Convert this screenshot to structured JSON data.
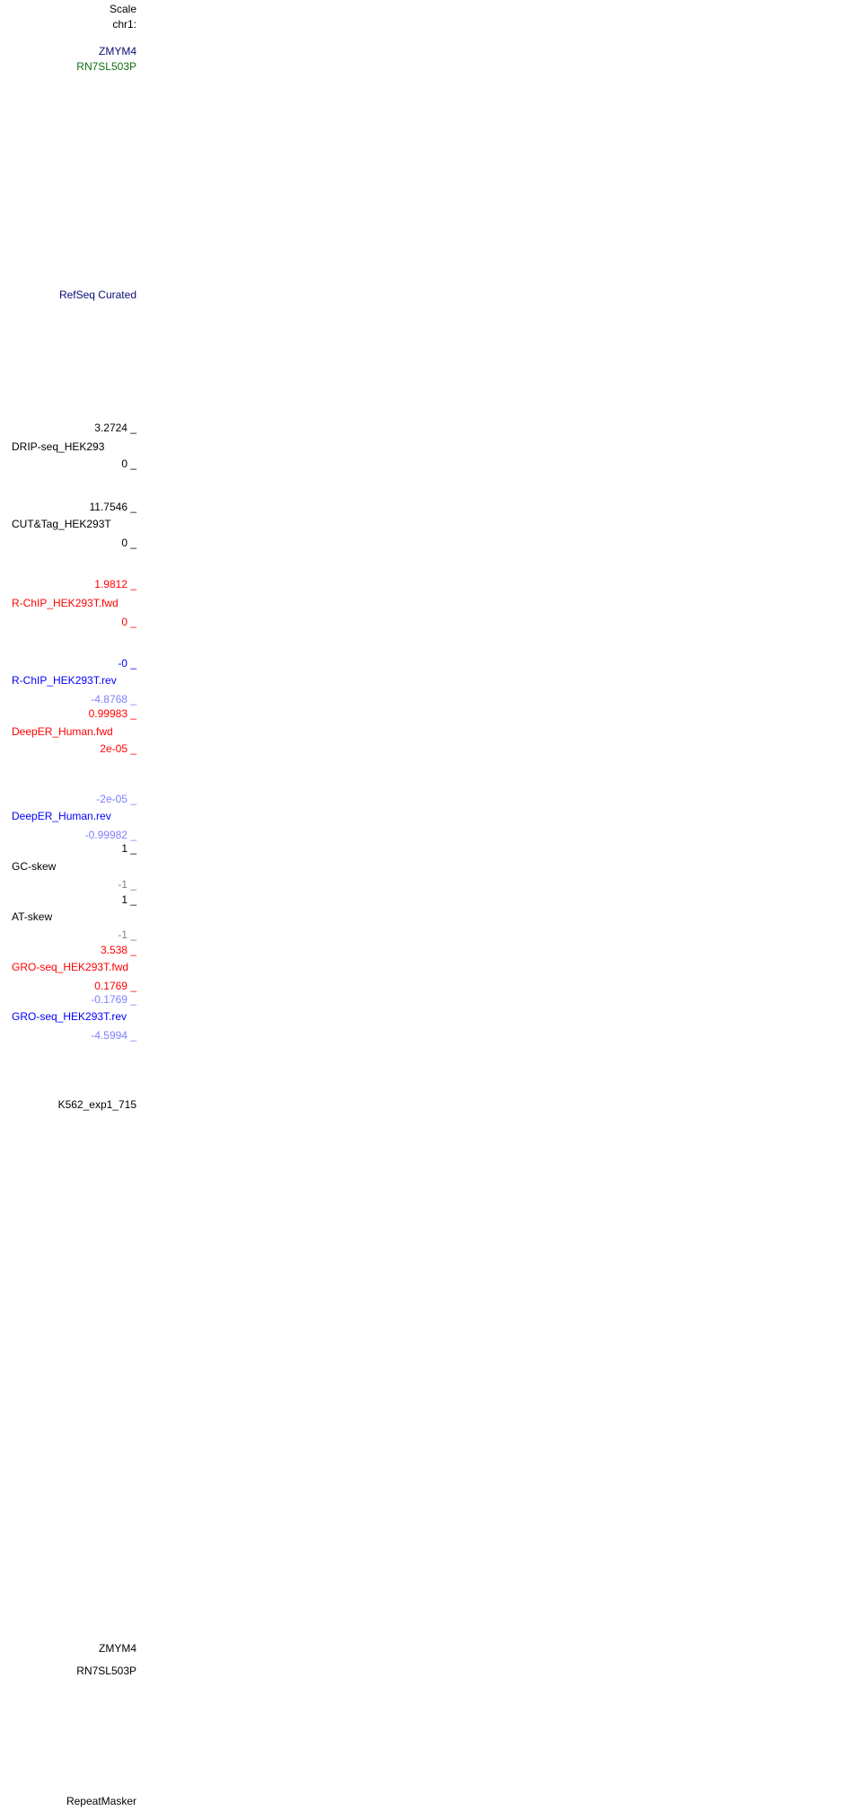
{
  "labels": [
    {
      "text": "Scale",
      "color": "#000000"
    },
    {
      "text": "chr1:",
      "color": "#000000"
    },
    {
      "text": "ZMYM4",
      "color": "#0c0c78"
    },
    {
      "text": "RN7SL503P",
      "color": "#126e12"
    },
    {
      "text": "RefSeq Curated",
      "color": "#0c0c78"
    },
    {
      "text": "3.2724 _",
      "color": "#000000"
    },
    {
      "text": "DRIP-seq_HEK293",
      "color": "#000000"
    },
    {
      "text": "0 _",
      "color": "#000000"
    },
    {
      "text": "11.7546 _",
      "color": "#000000"
    },
    {
      "text": "CUT&Tag_HEK293T",
      "color": "#000000"
    },
    {
      "text": "0 _",
      "color": "#000000"
    },
    {
      "text": "1.9812 _",
      "color": "#ff0000"
    },
    {
      "text": "R-ChIP_HEK293T.fwd",
      "color": "#ff0000"
    },
    {
      "text": "0 _",
      "color": "#ff0000"
    },
    {
      "text": "-0 _",
      "color": "#0000ff"
    },
    {
      "text": "R-ChIP_HEK293T.rev",
      "color": "#0000ff"
    },
    {
      "text": "-4.8768 _",
      "color": "#7f7fff"
    },
    {
      "text": "0.99983 _",
      "color": "#ff0000"
    },
    {
      "text": "DeepER_Human.fwd",
      "color": "#ff0000"
    },
    {
      "text": "2e-05 _",
      "color": "#ff0000"
    },
    {
      "text": "-2e-05 _",
      "color": "#7f7fff"
    },
    {
      "text": "DeepER_Human.rev",
      "color": "#0000ff"
    },
    {
      "text": "-0.99982 _",
      "color": "#7f7fff"
    },
    {
      "text": "1 _",
      "color": "#000000"
    },
    {
      "text": "GC-skew",
      "color": "#000000"
    },
    {
      "text": "-1 _",
      "color": "#7f7f7f"
    },
    {
      "text": "1 _",
      "color": "#000000"
    },
    {
      "text": "AT-skew",
      "color": "#000000"
    },
    {
      "text": "-1 _",
      "color": "#7f7f7f"
    },
    {
      "text": "3.538 _",
      "color": "#ff0000"
    },
    {
      "text": "GRO-seq_HEK293T.fwd",
      "color": "#ff0000"
    },
    {
      "text": "0.1769 _",
      "color": "#ff0000"
    },
    {
      "text": "-0.1769 _",
      "color": "#7f7fff"
    },
    {
      "text": "GRO-seq_HEK293T.rev",
      "color": "#0000ff"
    },
    {
      "text": "-4.5994 _",
      "color": "#7f7fff"
    },
    {
      "text": "K562_exp1_715",
      "color": "#000000"
    },
    {
      "text": "ZMYM4",
      "color": "#000000"
    },
    {
      "text": "RN7SL503P",
      "color": "#000000"
    },
    {
      "text": "RepeatMasker",
      "color": "#000000"
    }
  ]
}
